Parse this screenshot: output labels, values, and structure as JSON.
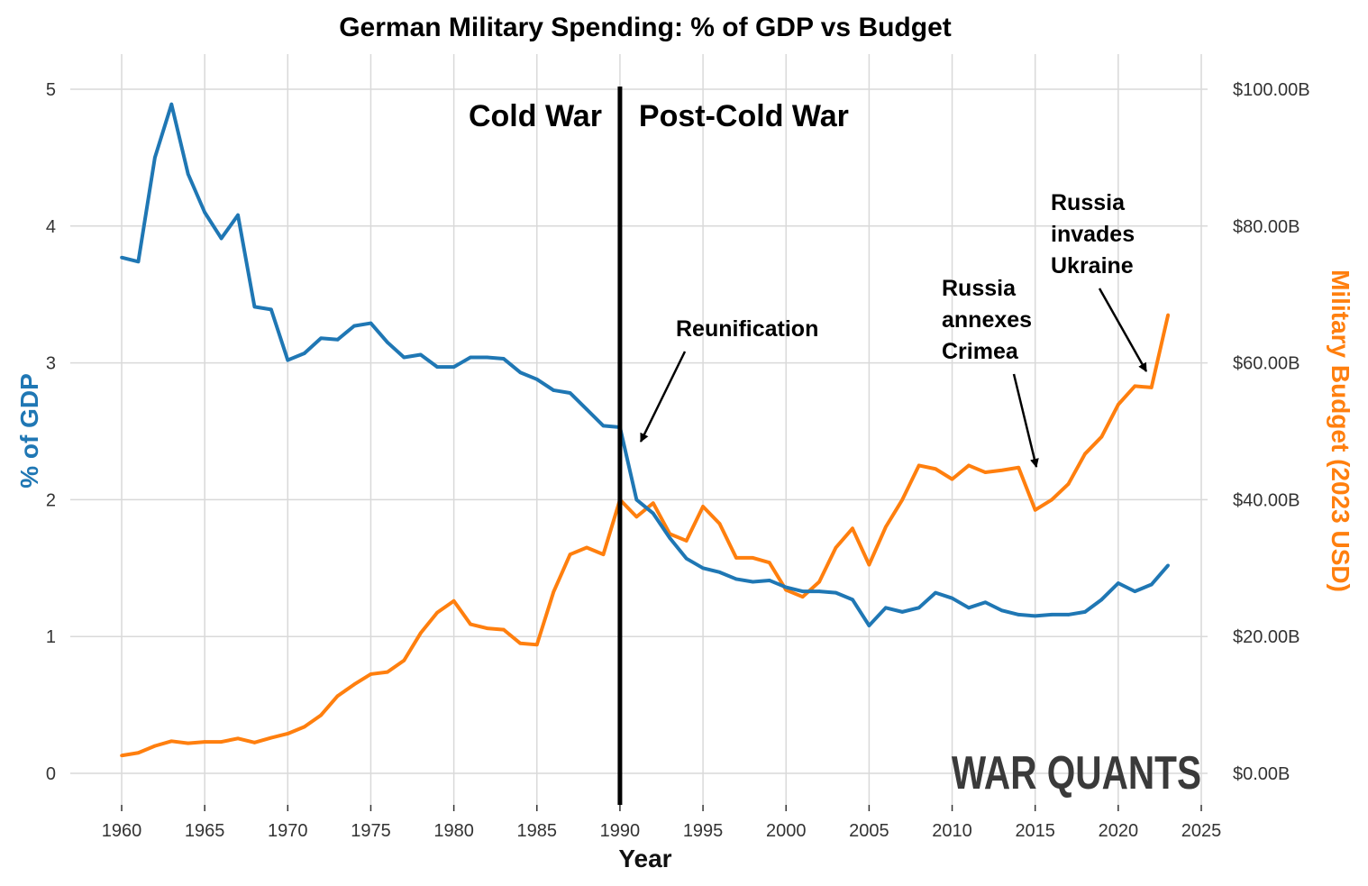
{
  "chart_data": {
    "type": "line",
    "title": "German Military Spending: % of GDP vs Budget",
    "xlabel": "Year",
    "ylabel": "% of GDP",
    "y2label": "Military Budget (2023 USD)",
    "xlim": [
      1960,
      2025
    ],
    "ylim": [
      0,
      5
    ],
    "y2lim": [
      0,
      100
    ],
    "grid": true,
    "x_ticks": [
      "1960",
      "1965",
      "1970",
      "1975",
      "1980",
      "1985",
      "1990",
      "1995",
      "2000",
      "2005",
      "2010",
      "2015",
      "2020",
      "2025"
    ],
    "y_ticks": [
      "0",
      "1",
      "2",
      "3",
      "4",
      "5"
    ],
    "y2_ticks": [
      "$0.00B",
      "$20.00B",
      "$40.00B",
      "$60.00B",
      "$80.00B",
      "$100.00B"
    ],
    "colors": {
      "gdp": "#1f77b4",
      "budget": "#ff7f0e"
    },
    "x": [
      1960,
      1961,
      1962,
      1963,
      1964,
      1965,
      1966,
      1967,
      1968,
      1969,
      1970,
      1971,
      1972,
      1973,
      1974,
      1975,
      1976,
      1977,
      1978,
      1979,
      1980,
      1981,
      1982,
      1983,
      1984,
      1985,
      1986,
      1987,
      1988,
      1989,
      1990,
      1991,
      1992,
      1993,
      1994,
      1995,
      1996,
      1997,
      1998,
      1999,
      2000,
      2001,
      2002,
      2003,
      2004,
      2005,
      2006,
      2007,
      2008,
      2009,
      2010,
      2011,
      2012,
      2013,
      2014,
      2015,
      2016,
      2017,
      2018,
      2019,
      2020,
      2021,
      2022,
      2023
    ],
    "series": [
      {
        "name": "% of GDP",
        "axis": "left",
        "values": [
          3.77,
          3.74,
          4.5,
          4.89,
          4.38,
          4.1,
          3.91,
          4.08,
          3.41,
          3.39,
          3.02,
          3.07,
          3.18,
          3.17,
          3.27,
          3.29,
          3.15,
          3.04,
          3.06,
          2.97,
          2.97,
          3.04,
          3.04,
          3.03,
          2.93,
          2.88,
          2.8,
          2.78,
          2.66,
          2.54,
          2.53,
          2.0,
          1.9,
          1.72,
          1.57,
          1.5,
          1.47,
          1.42,
          1.4,
          1.41,
          1.36,
          1.33,
          1.33,
          1.32,
          1.27,
          1.08,
          1.21,
          1.18,
          1.21,
          1.32,
          1.28,
          1.21,
          1.25,
          1.19,
          1.16,
          1.15,
          1.16,
          1.16,
          1.18,
          1.27,
          1.39,
          1.33,
          1.38,
          1.52
        ]
      },
      {
        "name": "Military Budget (2023 USD, $B)",
        "axis": "right",
        "values": [
          2.6,
          3.0,
          4.0,
          4.7,
          4.4,
          4.6,
          4.6,
          5.1,
          4.5,
          5.2,
          5.8,
          6.8,
          8.5,
          11.3,
          13.0,
          14.5,
          14.8,
          16.5,
          20.5,
          23.5,
          25.2,
          21.8,
          21.2,
          21.0,
          19.0,
          18.8,
          26.5,
          32.0,
          33.0,
          32.0,
          40.0,
          37.5,
          39.5,
          35.0,
          34.0,
          39.0,
          36.5,
          31.5,
          31.5,
          30.8,
          26.8,
          25.8,
          28.0,
          33.0,
          35.8,
          30.5,
          36.0,
          40.0,
          45.0,
          44.5,
          43.0,
          45.0,
          44.0,
          44.3,
          44.7,
          38.5,
          40.0,
          42.3,
          46.7,
          49.2,
          53.9,
          56.6,
          56.4,
          67.0
        ]
      }
    ],
    "vline": {
      "x": 1990,
      "left_label": "Cold War",
      "right_label": "Post-Cold War"
    },
    "annotations": [
      {
        "lines": [
          "Reunification"
        ],
        "target_year": 1991
      },
      {
        "lines": [
          "Russia",
          "annexes",
          "Crimea"
        ],
        "target_year": 2015
      },
      {
        "lines": [
          "Russia",
          "invades",
          "Ukraine"
        ],
        "target_year": 2022
      }
    ],
    "watermark": "WAR QUANTS"
  }
}
